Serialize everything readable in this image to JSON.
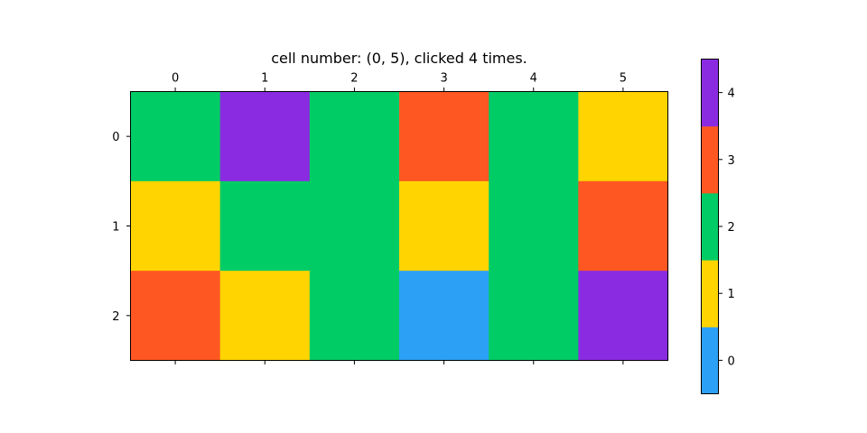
{
  "chart_data": {
    "type": "heatmap",
    "title": "cell number: (0, 5), clicked 4 times.",
    "xlabel": "",
    "ylabel": "",
    "x_ticks": [
      "0",
      "1",
      "2",
      "3",
      "4",
      "5"
    ],
    "y_ticks": [
      "0",
      "1",
      "2"
    ],
    "x_tick_position": "top-and-bottom",
    "grid": false,
    "values": [
      [
        2,
        4,
        2,
        3,
        2,
        1
      ],
      [
        1,
        2,
        2,
        1,
        2,
        3
      ],
      [
        3,
        1,
        2,
        0,
        2,
        4
      ]
    ],
    "colorbar": {
      "levels": [
        0,
        1,
        2,
        3,
        4
      ],
      "tick_labels": [
        "0",
        "1",
        "2",
        "3",
        "4"
      ],
      "colors": [
        "#2ca0f5",
        "#ffd400",
        "#00cc66",
        "#ff5722",
        "#8a2be2"
      ],
      "position": "right"
    }
  }
}
